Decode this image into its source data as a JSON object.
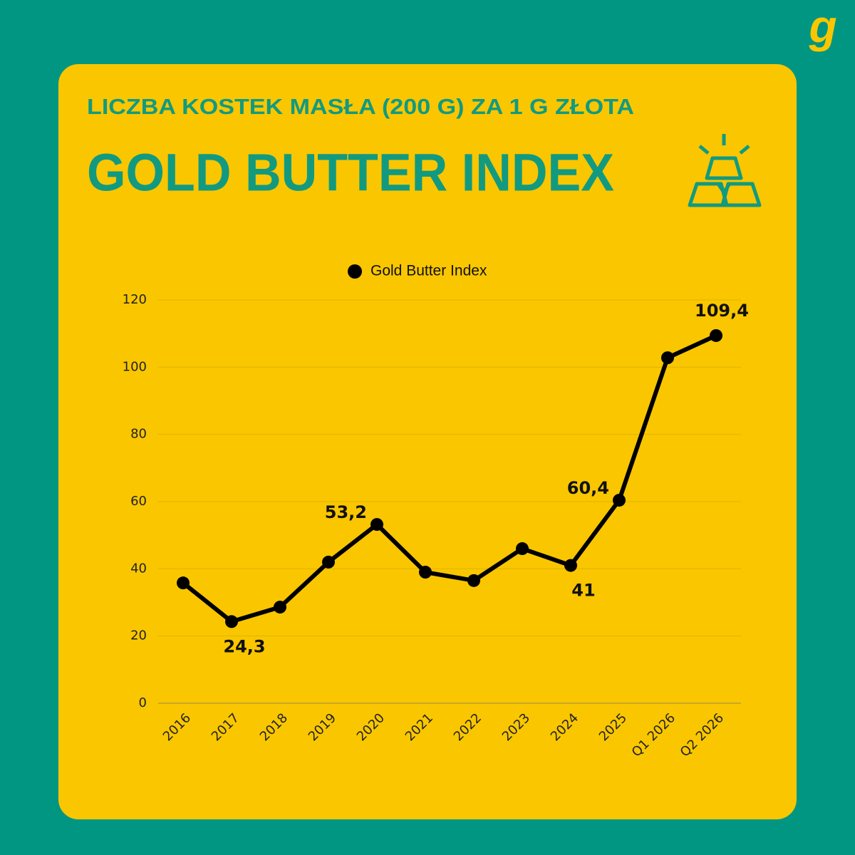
{
  "header": {
    "subtitle": "LICZBA KOSTEK MASŁA (200 G) ZA 1 G ZŁOTA",
    "title": "GOLD BUTTER INDEX"
  },
  "brand_mark": "g",
  "chart_data": {
    "type": "line",
    "categories": [
      "2016",
      "2017",
      "2018",
      "2019",
      "2020",
      "2021",
      "2022",
      "2023",
      "2024",
      "2025",
      "Q1 2026",
      "Q2 2026"
    ],
    "series": [
      {
        "name": "Gold Butter Index",
        "color": "#000000",
        "values": [
          35.8,
          24.3,
          28.6,
          42.0,
          53.2,
          39.0,
          36.5,
          46.0,
          41,
          60.4,
          102.8,
          109.4
        ],
        "value_labels": [
          null,
          "24,3",
          null,
          null,
          "53,2",
          null,
          null,
          null,
          "41",
          "60,4",
          null,
          "109,4"
        ]
      }
    ],
    "ylim": [
      0,
      120
    ],
    "yticks": [
      0,
      20,
      40,
      60,
      80,
      100,
      120
    ],
    "grid": true,
    "legend": "top"
  }
}
